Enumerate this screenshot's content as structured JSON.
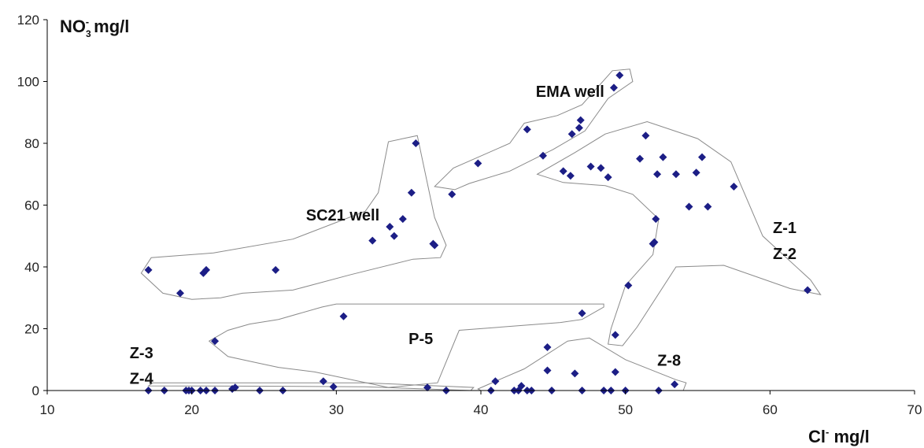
{
  "chart_data": {
    "type": "scatter",
    "xlabel": {
      "main": "Cl",
      "sup": "-",
      "unit": " mg/l"
    },
    "ylabel": {
      "main": "NO",
      "sub": "3",
      "sup": "-",
      "unit": " mg/l"
    },
    "xlim": [
      10,
      70
    ],
    "ylim": [
      0,
      120
    ],
    "xticks": [
      10,
      20,
      30,
      40,
      50,
      60,
      70
    ],
    "yticks": [
      0,
      20,
      40,
      60,
      80,
      100,
      120
    ],
    "grid": false,
    "marker_color": "#1c1e86",
    "points": [
      [
        17.0,
        39
      ],
      [
        19.2,
        31.5
      ],
      [
        20.8,
        38
      ],
      [
        21.0,
        39
      ],
      [
        25.8,
        39
      ],
      [
        32.5,
        48.5
      ],
      [
        33.7,
        53
      ],
      [
        34.0,
        50
      ],
      [
        34.6,
        55.5
      ],
      [
        35.2,
        64
      ],
      [
        35.5,
        80
      ],
      [
        36.7,
        47.5
      ],
      [
        36.8,
        47
      ],
      [
        38.0,
        63.5
      ],
      [
        39.8,
        73.5
      ],
      [
        43.2,
        84.5
      ],
      [
        44.3,
        76
      ],
      [
        46.3,
        83
      ],
      [
        46.8,
        85
      ],
      [
        46.9,
        87.5
      ],
      [
        49.2,
        98
      ],
      [
        49.6,
        102
      ],
      [
        45.7,
        71
      ],
      [
        46.2,
        69.5
      ],
      [
        47.6,
        72.5
      ],
      [
        48.3,
        72
      ],
      [
        48.8,
        69
      ],
      [
        51.0,
        75
      ],
      [
        51.4,
        82.5
      ],
      [
        52.2,
        70
      ],
      [
        52.6,
        75.5
      ],
      [
        53.5,
        70
      ],
      [
        54.4,
        59.5
      ],
      [
        54.9,
        70.5
      ],
      [
        55.3,
        75.5
      ],
      [
        55.7,
        59.5
      ],
      [
        57.5,
        66
      ],
      [
        51.9,
        47.5
      ],
      [
        52.0,
        48
      ],
      [
        52.1,
        55.5
      ],
      [
        50.2,
        34
      ],
      [
        49.3,
        18
      ],
      [
        62.6,
        32.5
      ],
      [
        21.6,
        16
      ],
      [
        30.5,
        24
      ],
      [
        47.0,
        25
      ],
      [
        44.6,
        14
      ],
      [
        44.6,
        6.5
      ],
      [
        46.5,
        5.5
      ],
      [
        49.3,
        6
      ],
      [
        41.0,
        3
      ],
      [
        53.4,
        2
      ],
      [
        42.8,
        1.5
      ],
      [
        36.3,
        1
      ],
      [
        29.1,
        3
      ],
      [
        29.8,
        1.2
      ],
      [
        23.0,
        1
      ],
      [
        22.8,
        0.5
      ],
      [
        17.0,
        0
      ],
      [
        18.1,
        0
      ],
      [
        19.6,
        0
      ],
      [
        19.8,
        0
      ],
      [
        20.0,
        0
      ],
      [
        20.6,
        0
      ],
      [
        21.0,
        0
      ],
      [
        21.6,
        0
      ],
      [
        24.7,
        0
      ],
      [
        26.3,
        0
      ],
      [
        37.6,
        0
      ],
      [
        40.7,
        0
      ],
      [
        42.3,
        0
      ],
      [
        42.6,
        0
      ],
      [
        43.2,
        0
      ],
      [
        43.5,
        0
      ],
      [
        44.9,
        0
      ],
      [
        47.0,
        0
      ],
      [
        48.5,
        0
      ],
      [
        49.0,
        0
      ],
      [
        50.0,
        0
      ],
      [
        52.3,
        0
      ]
    ],
    "regions": [
      {
        "label": "EMA well",
        "outline": [
          [
            39.2,
            67
          ],
          [
            38.2,
            65
          ],
          [
            36.8,
            66
          ],
          [
            38.1,
            72
          ],
          [
            42.0,
            80
          ],
          [
            43.0,
            86.5
          ],
          [
            45.3,
            89
          ],
          [
            47.0,
            92.5
          ],
          [
            49.1,
            103.5
          ],
          [
            50.3,
            104
          ],
          [
            50.5,
            100
          ],
          [
            48.8,
            94.5
          ],
          [
            47.2,
            84
          ],
          [
            45.0,
            78
          ],
          [
            42.0,
            71
          ],
          [
            39.2,
            67
          ]
        ]
      },
      {
        "label": "SC21 well",
        "outline": [
          [
            17.2,
            43
          ],
          [
            16.5,
            38
          ],
          [
            18.0,
            31.5
          ],
          [
            20.0,
            29.5
          ],
          [
            22.0,
            30
          ],
          [
            23.5,
            31.5
          ],
          [
            27.0,
            32.5
          ],
          [
            31.0,
            37.5
          ],
          [
            35.3,
            42.5
          ],
          [
            37.2,
            43
          ],
          [
            37.6,
            47
          ],
          [
            36.8,
            56
          ],
          [
            35.6,
            82.5
          ],
          [
            33.6,
            80.5
          ],
          [
            32.9,
            64
          ],
          [
            32.0,
            58
          ],
          [
            27.0,
            49
          ],
          [
            21.5,
            44.5
          ],
          [
            17.2,
            43
          ]
        ]
      },
      {
        "label": "Z-1\nZ-2",
        "outline": [
          [
            43.9,
            70
          ],
          [
            45.7,
            67.3
          ],
          [
            48.6,
            66.3
          ],
          [
            50.5,
            63.5
          ],
          [
            52.3,
            55.5
          ],
          [
            51.9,
            44
          ],
          [
            50.0,
            34
          ],
          [
            49.0,
            20
          ],
          [
            48.8,
            15
          ],
          [
            49.8,
            14.5
          ],
          [
            50.8,
            20.5
          ],
          [
            53.5,
            40
          ],
          [
            56.8,
            40.5
          ],
          [
            61.4,
            33
          ],
          [
            63.5,
            31
          ],
          [
            62.8,
            35.8
          ],
          [
            59.5,
            50
          ],
          [
            57.3,
            74
          ],
          [
            55.0,
            81.5
          ],
          [
            51.5,
            87
          ],
          [
            48.6,
            83
          ],
          [
            46.5,
            77
          ],
          [
            43.9,
            70
          ]
        ]
      },
      {
        "label": "P-5",
        "outline": [
          [
            21.2,
            16
          ],
          [
            22.5,
            19.5
          ],
          [
            24.0,
            21.5
          ],
          [
            26.0,
            23
          ],
          [
            29.0,
            27
          ],
          [
            30.0,
            28
          ],
          [
            48.5,
            28
          ],
          [
            48.5,
            27
          ],
          [
            47.0,
            23
          ],
          [
            45.5,
            22
          ],
          [
            38.5,
            19.5
          ],
          [
            37.0,
            2.5
          ],
          [
            33.6,
            1.0
          ],
          [
            28.5,
            6
          ],
          [
            26.0,
            7.5
          ],
          [
            24.5,
            9
          ],
          [
            22.5,
            11
          ],
          [
            21.2,
            16
          ]
        ]
      },
      {
        "label": "Z-3\nZ-4",
        "outline": [
          [
            17.0,
            1.5
          ],
          [
            17.3,
            2.5
          ],
          [
            32.0,
            2.5
          ],
          [
            39.5,
            1.0
          ],
          [
            39.3,
            0
          ],
          [
            32.0,
            1.2
          ],
          [
            25.0,
            1.4
          ],
          [
            17.0,
            1.5
          ]
        ]
      },
      {
        "label": "Z-8",
        "outline": [
          [
            39.8,
            0.5
          ],
          [
            41.5,
            4
          ],
          [
            43.0,
            7
          ],
          [
            46.0,
            16
          ],
          [
            47.5,
            17
          ],
          [
            50.0,
            10
          ],
          [
            53.5,
            3.5
          ],
          [
            54.2,
            2.5
          ],
          [
            54.0,
            0
          ],
          [
            40.0,
            0
          ],
          [
            39.8,
            0.5
          ]
        ]
      }
    ],
    "labels": [
      {
        "text": "EMA well",
        "x": 43.8,
        "y": 95
      },
      {
        "text": "SC21 well",
        "x": 27.9,
        "y": 55
      },
      {
        "text": "Z-1",
        "x": 60.2,
        "y": 51
      },
      {
        "text": "Z-2",
        "x": 60.2,
        "y": 42.5
      },
      {
        "text": "P-5",
        "x": 35.0,
        "y": 15
      },
      {
        "text": "Z-3",
        "x": 15.7,
        "y": 10.5
      },
      {
        "text": "Z-4",
        "x": 15.7,
        "y": 2.2
      },
      {
        "text": "Z-8",
        "x": 52.2,
        "y": 8
      }
    ]
  }
}
